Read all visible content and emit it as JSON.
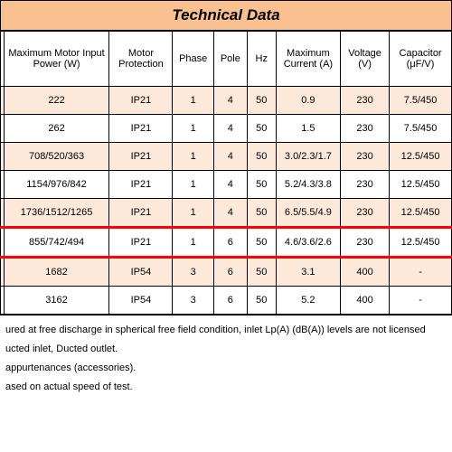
{
  "title": "Technical Data",
  "columns": [
    {
      "label": ""
    },
    {
      "label": "Maximum Motor Input Power (W)"
    },
    {
      "label": "Motor Protection"
    },
    {
      "label": "Phase"
    },
    {
      "label": "Pole"
    },
    {
      "label": "Hz"
    },
    {
      "label": "Maximum Current (A)"
    },
    {
      "label": "Voltage (V)"
    },
    {
      "label": "Capacitor (μF/V)"
    }
  ],
  "rows": [
    {
      "cells": [
        "",
        "222",
        "IP21",
        "1",
        "4",
        "50",
        "0.9",
        "230",
        "7.5/450"
      ],
      "shade": "odd"
    },
    {
      "cells": [
        "",
        "262",
        "IP21",
        "1",
        "4",
        "50",
        "1.5",
        "230",
        "7.5/450"
      ],
      "shade": "even"
    },
    {
      "cells": [
        "",
        "708/520/363",
        "IP21",
        "1",
        "4",
        "50",
        "3.0/2.3/1.7",
        "230",
        "12.5/450"
      ],
      "shade": "odd"
    },
    {
      "cells": [
        "",
        "1154/976/842",
        "IP21",
        "1",
        "4",
        "50",
        "5.2/4.3/3.8",
        "230",
        "12.5/450"
      ],
      "shade": "even"
    },
    {
      "cells": [
        "",
        "1736/1512/1265",
        "IP21",
        "1",
        "4",
        "50",
        "6.5/5.5/4.9",
        "230",
        "12.5/450"
      ],
      "shade": "odd"
    },
    {
      "cells": [
        "",
        "855/742/494",
        "IP21",
        "1",
        "6",
        "50",
        "4.6/3.6/2.6",
        "230",
        "12.5/450"
      ],
      "shade": "even",
      "highlight": true
    },
    {
      "cells": [
        "",
        "1682",
        "IP54",
        "3",
        "6",
        "50",
        "3.1",
        "400",
        "-"
      ],
      "shade": "odd"
    },
    {
      "cells": [
        "",
        "3162",
        "IP54",
        "3",
        "6",
        "50",
        "5.2",
        "400",
        "-"
      ],
      "shade": "even"
    }
  ],
  "notes": [
    "ured at free discharge in spherical free field condition, inlet Lp(A) (dB(A)) levels are not licensed",
    "ucted inlet, Ducted outlet.",
    "appurtenances (accessories).",
    "ased on actual speed of test."
  ],
  "colors": {
    "title_bg": "#fac08f",
    "odd_bg": "#fde9d9",
    "even_bg": "#ffffff",
    "highlight_border": "#ff0000",
    "border": "#000000"
  },
  "fonts": {
    "title_size_pt": 13,
    "cell_size_pt": 8
  }
}
